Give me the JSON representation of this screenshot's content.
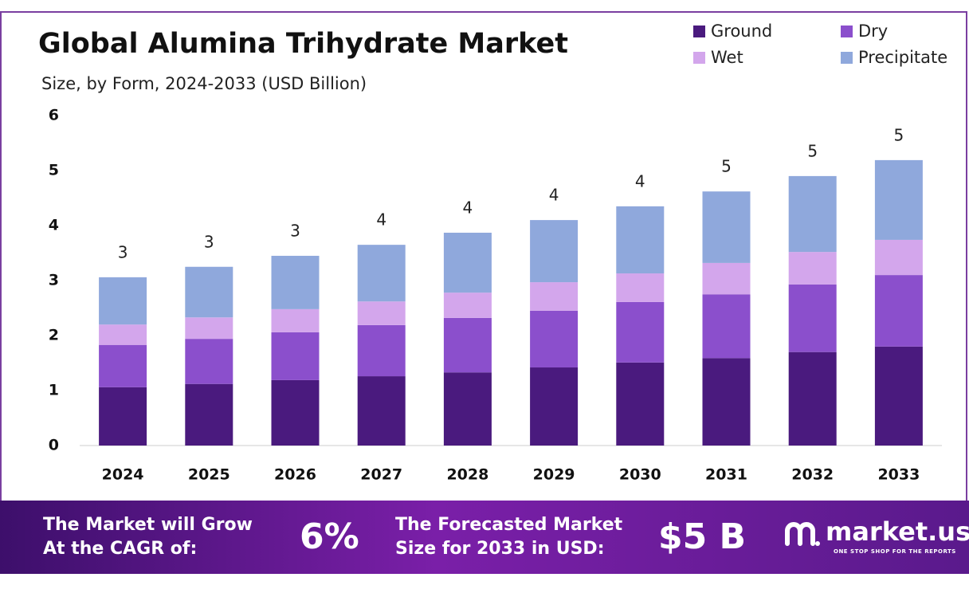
{
  "chart_data": {
    "type": "stacked-bar",
    "title": "Global Alumina Trihydrate Market",
    "subtitle": "Size, by Form, 2024-2033 (USD Billion)",
    "categories": [
      "2024",
      "2025",
      "2026",
      "2027",
      "2028",
      "2029",
      "2030",
      "2031",
      "2032",
      "2033"
    ],
    "series": [
      {
        "name": "Ground",
        "color": "#4a1a7e",
        "values": [
          1.06,
          1.12,
          1.19,
          1.26,
          1.33,
          1.42,
          1.51,
          1.59,
          1.7,
          1.8
        ]
      },
      {
        "name": "Dry",
        "color": "#8b4fcc",
        "values": [
          0.77,
          0.82,
          0.87,
          0.93,
          0.99,
          1.03,
          1.1,
          1.16,
          1.23,
          1.3
        ]
      },
      {
        "name": "Wet",
        "color": "#d3a6ec",
        "values": [
          0.37,
          0.39,
          0.42,
          0.43,
          0.46,
          0.52,
          0.52,
          0.57,
          0.59,
          0.64
        ]
      },
      {
        "name": "Precipitate",
        "color": "#8fa8dc",
        "values": [
          0.86,
          0.92,
          0.97,
          1.03,
          1.09,
          1.13,
          1.22,
          1.3,
          1.38,
          1.45
        ]
      }
    ],
    "total_labels": [
      "3",
      "3",
      "3",
      "4",
      "4",
      "4",
      "4",
      "5",
      "5",
      "5"
    ],
    "ylim": [
      0,
      6
    ],
    "yticks": [
      0,
      1,
      2,
      3,
      4,
      5,
      6
    ],
    "grid": false
  },
  "footer": {
    "cagr_text_1": "The Market will Grow",
    "cagr_text_2": "At the CAGR of:",
    "cagr": "6%",
    "forecast_text_1": "The Forecasted Market",
    "forecast_text_2": "Size for 2033 in USD:",
    "forecast": "$5 B",
    "logo": "market.us",
    "tagline": "ONE STOP SHOP FOR THE REPORTS"
  }
}
